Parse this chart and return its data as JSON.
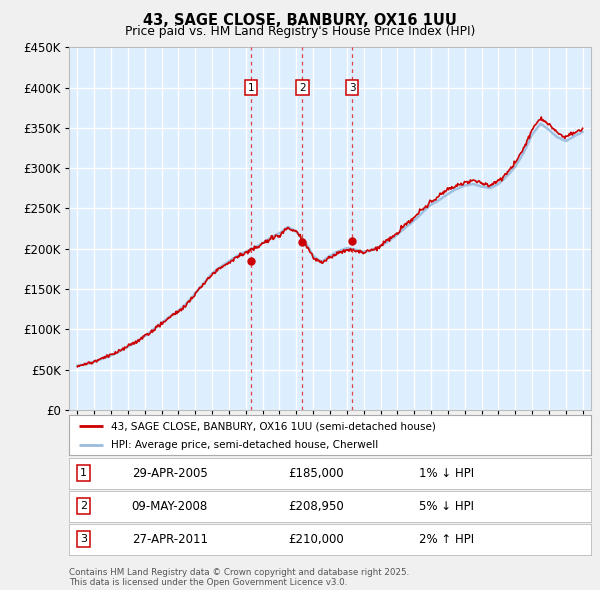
{
  "title": "43, SAGE CLOSE, BANBURY, OX16 1UU",
  "subtitle": "Price paid vs. HM Land Registry's House Price Index (HPI)",
  "bg_color": "#ddeeff",
  "fig_bg": "#f0f0f0",
  "grid_color": "#ffffff",
  "red_line_color": "#cc0000",
  "blue_line_color": "#99bbdd",
  "transactions": [
    {
      "label": "1",
      "date": 2005.32,
      "price": 185000,
      "pct": "1%",
      "dir": "↓",
      "date_str": "29-APR-2005",
      "price_str": "£185,000"
    },
    {
      "label": "2",
      "date": 2008.36,
      "price": 208950,
      "pct": "5%",
      "dir": "↓",
      "date_str": "09-MAY-2008",
      "price_str": "£208,950"
    },
    {
      "label": "3",
      "date": 2011.32,
      "price": 210000,
      "pct": "2%",
      "dir": "↑",
      "date_str": "27-APR-2011",
      "price_str": "£210,000"
    }
  ],
  "legend_label_red": "43, SAGE CLOSE, BANBURY, OX16 1UU (semi-detached house)",
  "legend_label_blue": "HPI: Average price, semi-detached house, Cherwell",
  "footer": "Contains HM Land Registry data © Crown copyright and database right 2025.\nThis data is licensed under the Open Government Licence v3.0.",
  "ylim": [
    0,
    450000
  ],
  "xlim": [
    1994.5,
    2025.5
  ],
  "hpi_segments": [
    [
      1995.0,
      55000
    ],
    [
      1995.5,
      57000
    ],
    [
      1996.0,
      60000
    ],
    [
      1996.5,
      64000
    ],
    [
      1997.0,
      68000
    ],
    [
      1997.5,
      73000
    ],
    [
      1998.0,
      79000
    ],
    [
      1998.5,
      85000
    ],
    [
      1999.0,
      92000
    ],
    [
      1999.5,
      100000
    ],
    [
      2000.0,
      108000
    ],
    [
      2000.5,
      116000
    ],
    [
      2001.0,
      123000
    ],
    [
      2001.5,
      132000
    ],
    [
      2002.0,
      145000
    ],
    [
      2002.5,
      158000
    ],
    [
      2003.0,
      170000
    ],
    [
      2003.5,
      178000
    ],
    [
      2004.0,
      185000
    ],
    [
      2004.5,
      192000
    ],
    [
      2005.0,
      197000
    ],
    [
      2005.5,
      202000
    ],
    [
      2006.0,
      208000
    ],
    [
      2006.5,
      215000
    ],
    [
      2007.0,
      220000
    ],
    [
      2007.5,
      228000
    ],
    [
      2008.0,
      222000
    ],
    [
      2008.5,
      210000
    ],
    [
      2009.0,
      192000
    ],
    [
      2009.5,
      185000
    ],
    [
      2010.0,
      192000
    ],
    [
      2010.5,
      198000
    ],
    [
      2011.0,
      202000
    ],
    [
      2011.5,
      200000
    ],
    [
      2012.0,
      198000
    ],
    [
      2012.5,
      200000
    ],
    [
      2013.0,
      205000
    ],
    [
      2013.5,
      212000
    ],
    [
      2014.0,
      220000
    ],
    [
      2014.5,
      230000
    ],
    [
      2015.0,
      238000
    ],
    [
      2015.5,
      248000
    ],
    [
      2016.0,
      258000
    ],
    [
      2016.5,
      265000
    ],
    [
      2017.0,
      272000
    ],
    [
      2017.5,
      278000
    ],
    [
      2018.0,
      283000
    ],
    [
      2018.5,
      285000
    ],
    [
      2019.0,
      282000
    ],
    [
      2019.5,
      280000
    ],
    [
      2020.0,
      285000
    ],
    [
      2020.5,
      295000
    ],
    [
      2021.0,
      308000
    ],
    [
      2021.5,
      325000
    ],
    [
      2022.0,
      348000
    ],
    [
      2022.5,
      362000
    ],
    [
      2023.0,
      355000
    ],
    [
      2023.5,
      345000
    ],
    [
      2024.0,
      340000
    ],
    [
      2024.5,
      345000
    ],
    [
      2025.0,
      350000
    ]
  ]
}
